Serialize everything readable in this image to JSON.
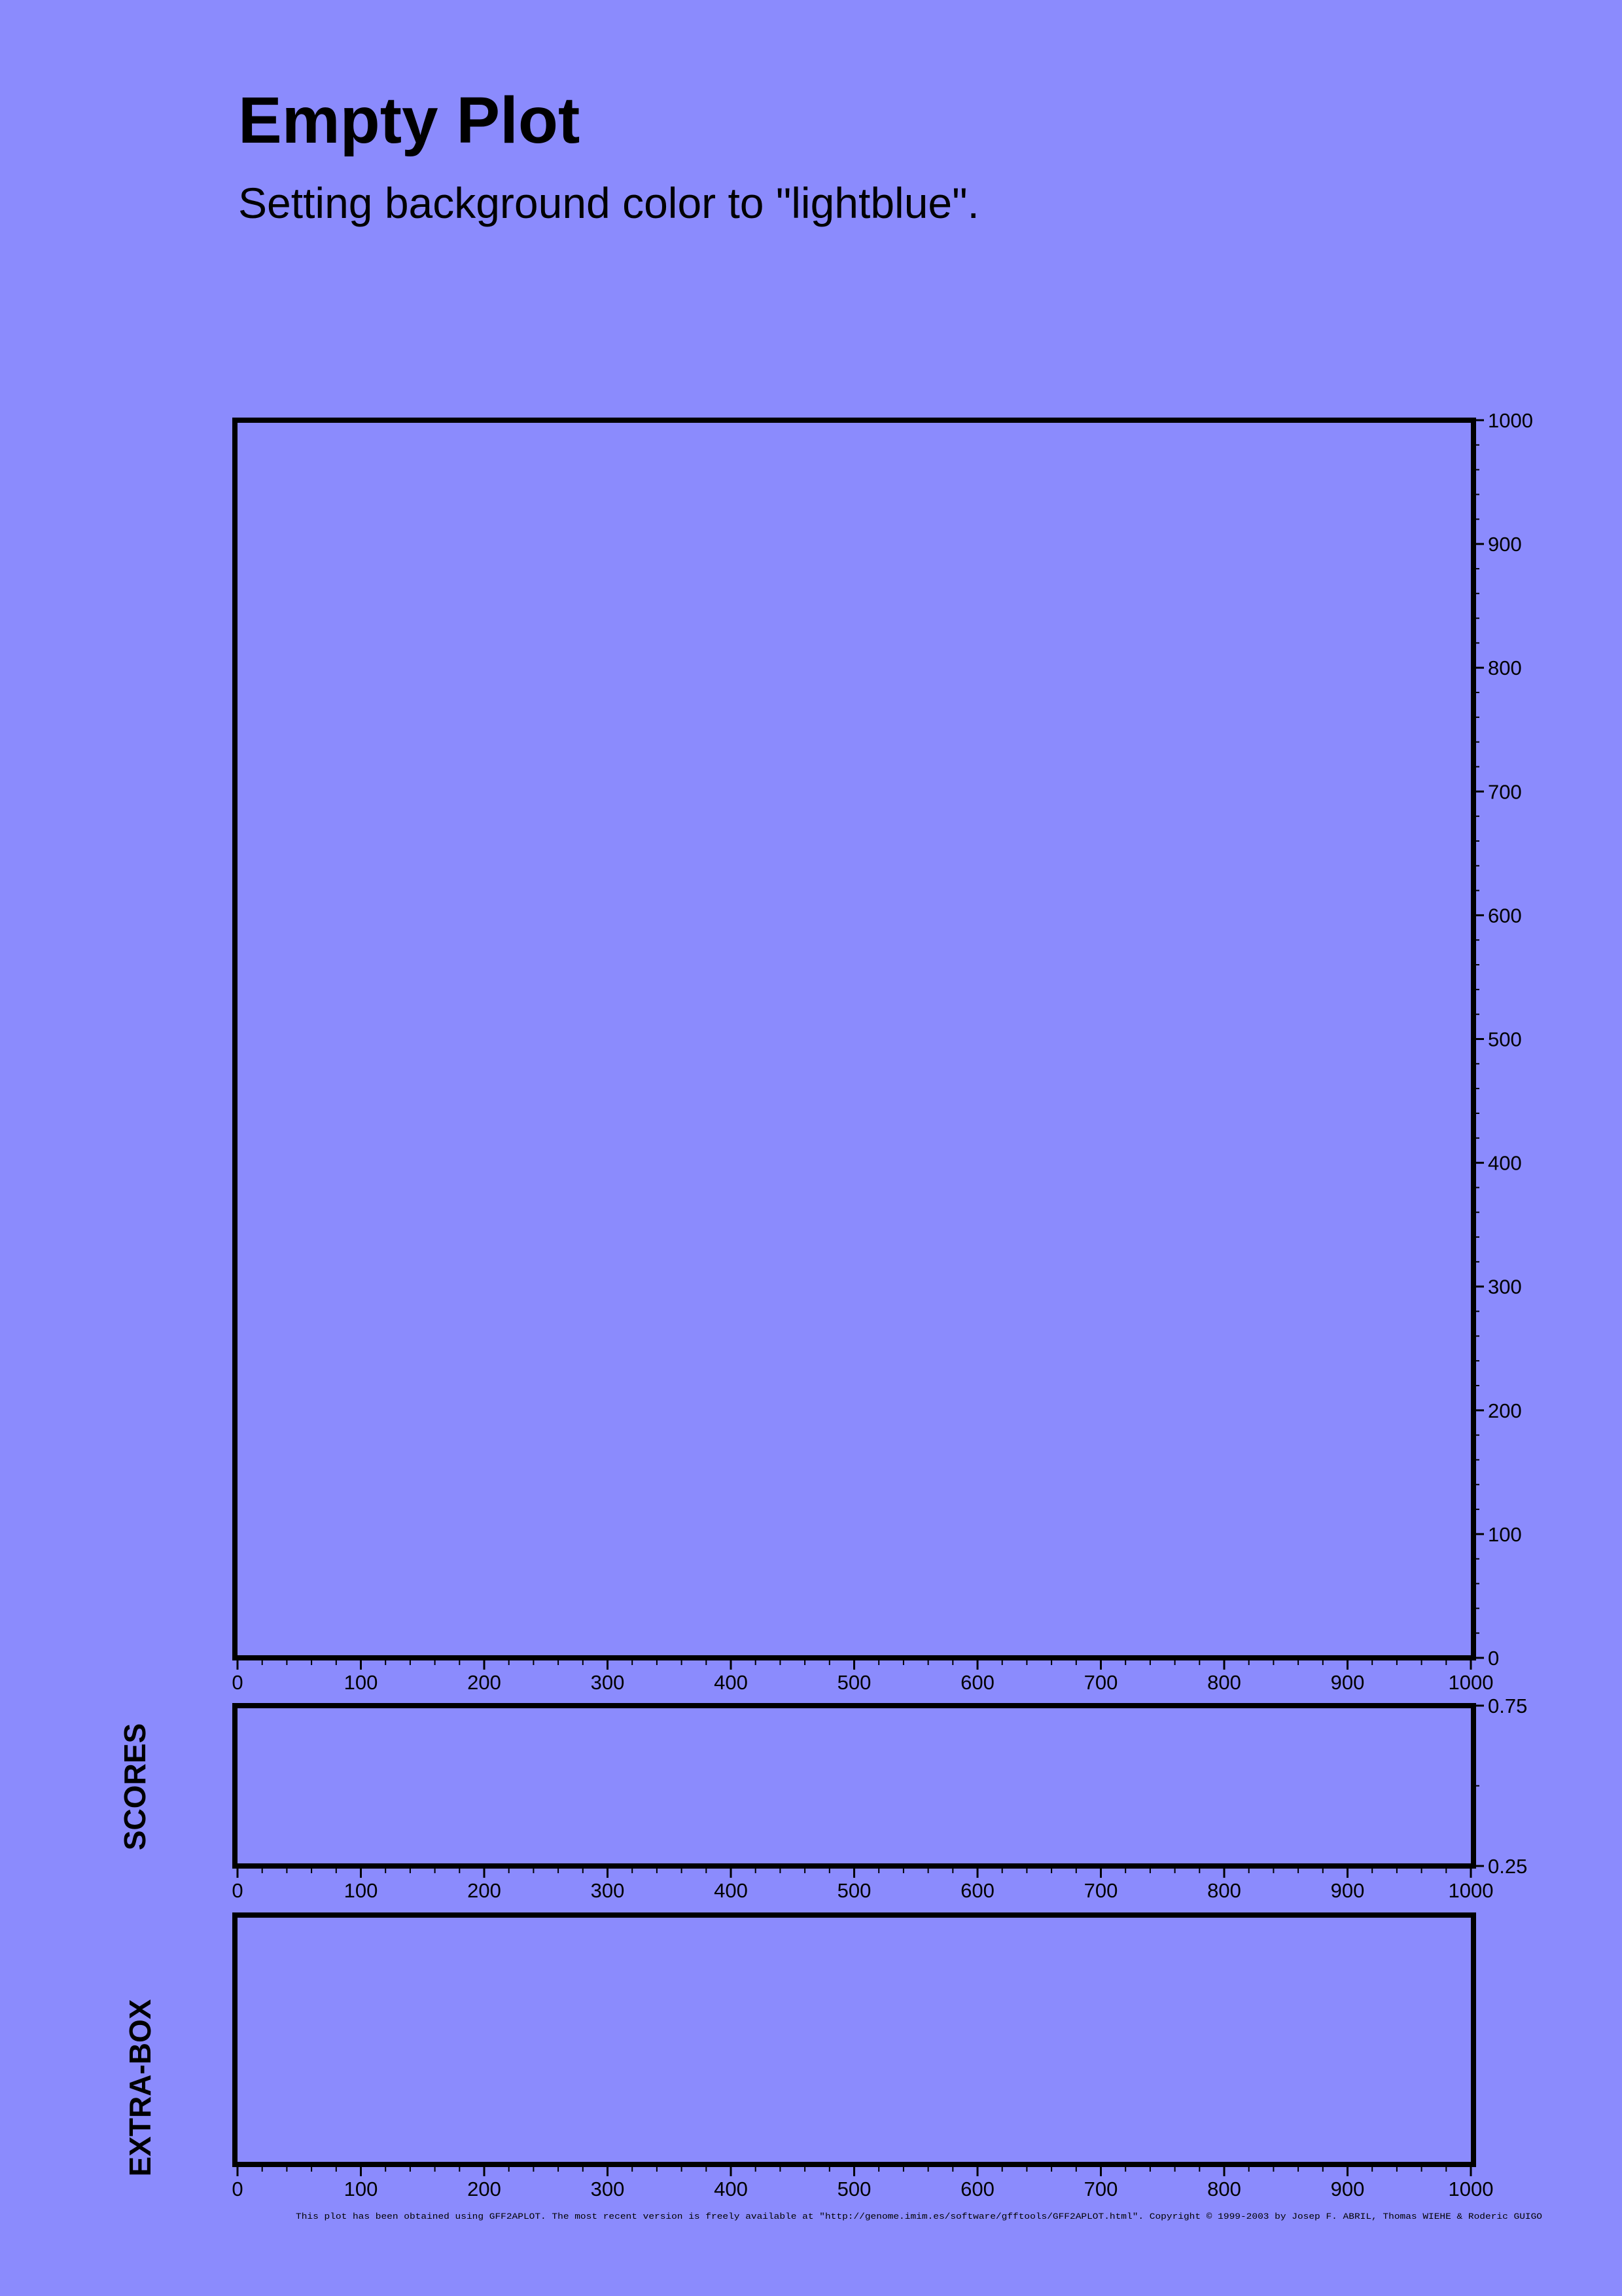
{
  "background_color": "#8b8bfd",
  "title": "Empty Plot",
  "subtitle": "Setting background color to \"lightblue\".",
  "footer": "This plot has been obtained using GFF2APLOT. The most recent version is freely available at \"http://genome.imim.es/software/gfftools/GFF2APLOT.html\". Copyright © 1999-2003 by Josep F. ABRIL, Thomas WIEHE & Roderic GUIGO",
  "chart_data": [
    {
      "type": "scatter",
      "title": "",
      "xlabel": "",
      "ylabel": "",
      "xlim": [
        0,
        1000
      ],
      "ylim": [
        0,
        1000
      ],
      "x_ticks": [
        0,
        100,
        200,
        300,
        400,
        500,
        600,
        700,
        800,
        900,
        1000
      ],
      "y_ticks": [
        0,
        100,
        200,
        300,
        400,
        500,
        600,
        700,
        800,
        900,
        1000
      ],
      "y_axis_side": "right",
      "grid": false,
      "series": []
    },
    {
      "type": "line",
      "title": "",
      "side_label": "SCORES",
      "xlim": [
        0,
        1000
      ],
      "ylim": [
        0.25,
        0.75
      ],
      "x_ticks": [
        0,
        100,
        200,
        300,
        400,
        500,
        600,
        700,
        800,
        900,
        1000
      ],
      "y_ticks": [
        0.25,
        0.75
      ],
      "y_axis_side": "right",
      "grid": false,
      "series": []
    },
    {
      "type": "line",
      "title": "",
      "side_label": "EXTRA-BOX",
      "xlim": [
        0,
        1000
      ],
      "x_ticks": [
        0,
        100,
        200,
        300,
        400,
        500,
        600,
        700,
        800,
        900,
        1000
      ],
      "grid": false,
      "series": []
    }
  ]
}
